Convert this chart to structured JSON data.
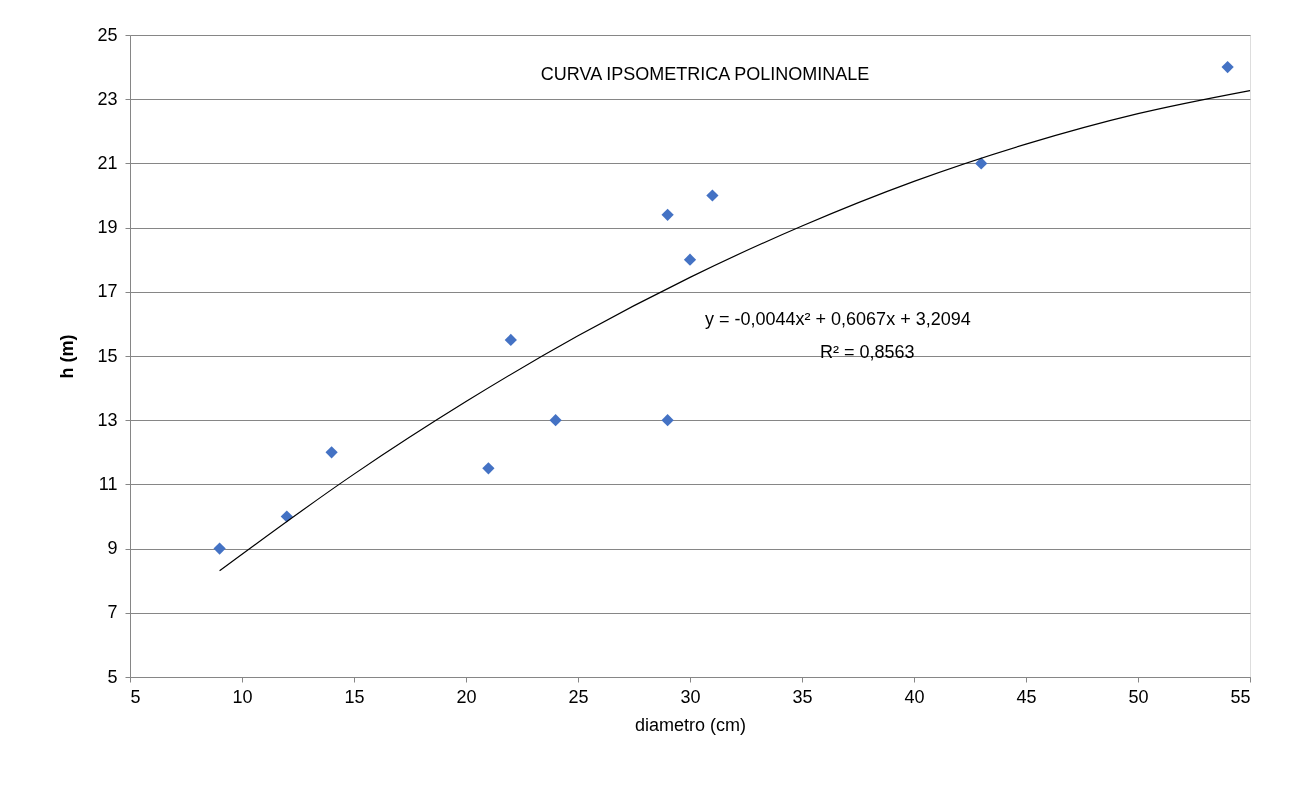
{
  "chart_data": {
    "type": "scatter",
    "title": "CURVA IPSOMETRICA POLINOMINALE",
    "xlabel": "diametro (cm)",
    "ylabel": "h (m)",
    "series": [
      {
        "color": "#4472c4",
        "marker": "diamond",
        "x": [
          9,
          12,
          14,
          21,
          22,
          24,
          29,
          29,
          30,
          31,
          43,
          54
        ],
        "values": [
          9,
          10,
          12,
          11.5,
          15.5,
          13,
          19.4,
          13,
          18,
          20,
          21,
          24
        ]
      },
      {
        "type": "line",
        "color": "#000000",
        "marker": "none",
        "line_style": "solid",
        "x": [
          9,
          15,
          20,
          25,
          30,
          35,
          40,
          45,
          50,
          55
        ],
        "values": [
          8.31,
          11.32,
          13.58,
          15.63,
          17.45,
          19.05,
          20.44,
          21.6,
          22.55,
          23.27
        ]
      }
    ],
    "annotations": [
      "y = -0,0044x² + 0,6067x + 3,2094",
      "R² = 0,8563"
    ],
    "xlim": [
      5,
      55
    ],
    "ylim": [
      5,
      25
    ],
    "xticks": [
      5,
      10,
      15,
      20,
      25,
      30,
      35,
      40,
      45,
      50,
      55
    ],
    "yticks": [
      5,
      7,
      9,
      11,
      13,
      15,
      17,
      19,
      21,
      23,
      25
    ],
    "grid": "y"
  }
}
